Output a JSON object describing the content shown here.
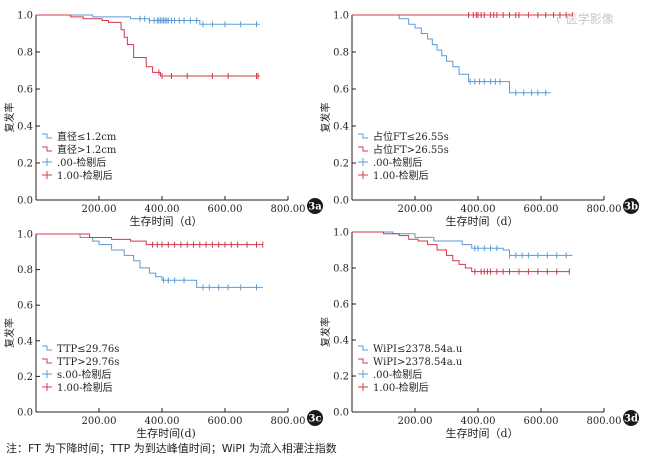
{
  "watermark": "ᠵ 医学影像",
  "note": "注：FT 为下降时间；TTP 为到达峰值时间；WiPI 为流入相灌注指数",
  "colors": {
    "blue": "#5b9bd5",
    "red": "#d2384a",
    "axis": "#231f20",
    "badge": "#1a1a1a"
  },
  "chart_data": [
    {
      "panel_label": "3a",
      "type": "line",
      "xlabel": "生存时间（d）",
      "ylabel": "复发率",
      "xlim": [
        0,
        800
      ],
      "ylim": [
        0.0,
        1.0
      ],
      "x_ticks": [
        "200.00",
        "400.00",
        "600.00",
        "800.00"
      ],
      "y_ticks": [
        "0.0",
        "0.2",
        "0.4",
        "0.6",
        "0.8",
        "1.0"
      ],
      "legend_position": "bottom-left",
      "legend": [
        "直径≤1.2cm",
        "直径>1.2cm",
        ".00-检剔后",
        "1.00-检剔后"
      ],
      "series": [
        {
          "name": "直径≤1.2cm",
          "color": "blue",
          "steps": [
            [
              0,
              1.0
            ],
            [
              180,
              0.99
            ],
            [
              300,
              0.98
            ],
            [
              360,
              0.97
            ],
            [
              520,
              0.95
            ],
            [
              710,
              0.95
            ]
          ],
          "censored": [
            330,
            345,
            360,
            375,
            385,
            390,
            395,
            400,
            405,
            410,
            415,
            420,
            430,
            440,
            455,
            470,
            490,
            510,
            530,
            560,
            600,
            650,
            700
          ]
        },
        {
          "name": "直径>1.2cm",
          "color": "red",
          "steps": [
            [
              0,
              1.0
            ],
            [
              110,
              0.99
            ],
            [
              150,
              0.98
            ],
            [
              210,
              0.97
            ],
            [
              230,
              0.96
            ],
            [
              270,
              0.92
            ],
            [
              280,
              0.88
            ],
            [
              290,
              0.84
            ],
            [
              310,
              0.77
            ],
            [
              350,
              0.72
            ],
            [
              370,
              0.69
            ],
            [
              395,
              0.67
            ],
            [
              710,
              0.67
            ]
          ],
          "censored": [
            390,
            400,
            430,
            480,
            560,
            610,
            700,
            705
          ]
        }
      ]
    },
    {
      "panel_label": "3b",
      "type": "line",
      "xlabel": "生存时间（d）",
      "ylabel": "复发率",
      "xlim": [
        0,
        800
      ],
      "ylim": [
        0.0,
        1.0
      ],
      "x_ticks": [
        "200.00",
        "400.00",
        "600.00",
        "800.00"
      ],
      "y_ticks": [
        "0.0",
        "0.2",
        "0.4",
        "0.6",
        "0.8",
        "1.0"
      ],
      "legend_position": "bottom-left",
      "legend": [
        "占位FT≤26.55s",
        "占位FT>26.55s",
        ".00-检剔后",
        "1.00-检剔后"
      ],
      "series": [
        {
          "name": "占位FT≤26.55s",
          "color": "blue",
          "steps": [
            [
              0,
              1.0
            ],
            [
              150,
              0.98
            ],
            [
              180,
              0.95
            ],
            [
              200,
              0.93
            ],
            [
              220,
              0.9
            ],
            [
              240,
              0.87
            ],
            [
              255,
              0.84
            ],
            [
              270,
              0.81
            ],
            [
              285,
              0.78
            ],
            [
              300,
              0.75
            ],
            [
              320,
              0.72
            ],
            [
              340,
              0.68
            ],
            [
              370,
              0.64
            ],
            [
              500,
              0.58
            ],
            [
              630,
              0.58
            ]
          ],
          "censored": [
            375,
            390,
            405,
            420,
            440,
            455,
            470,
            520,
            545,
            570,
            590,
            615
          ]
        },
        {
          "name": "占位FT>26.55s",
          "color": "red",
          "steps": [
            [
              0,
              1.0
            ],
            [
              700,
              1.0
            ]
          ],
          "censored": [
            370,
            385,
            395,
            400,
            410,
            420,
            440,
            450,
            460,
            480,
            500,
            520,
            530,
            560,
            590,
            615,
            640,
            660,
            680,
            700
          ]
        }
      ]
    },
    {
      "panel_label": "3c",
      "type": "line",
      "xlabel": "生存时间(d)",
      "ylabel": "复发率",
      "xlim": [
        0,
        800
      ],
      "ylim": [
        0.0,
        1.0
      ],
      "x_ticks": [
        "200.00",
        "400.00",
        "600.00",
        "800.00"
      ],
      "y_ticks": [
        "0.0",
        "0.2",
        "0.4",
        "0.6",
        "0.8",
        "1.0"
      ],
      "legend_position": "bottom-left",
      "legend": [
        "TTP≤29.76s",
        "TTP>29.76s",
        "s.00-检剔后",
        "1.00-检剔后"
      ],
      "series": [
        {
          "name": "TTP≤29.76s",
          "color": "blue",
          "steps": [
            [
              0,
              1.0
            ],
            [
              140,
              0.98
            ],
            [
              180,
              0.96
            ],
            [
              200,
              0.94
            ],
            [
              240,
              0.91
            ],
            [
              280,
              0.88
            ],
            [
              310,
              0.85
            ],
            [
              330,
              0.81
            ],
            [
              360,
              0.78
            ],
            [
              380,
              0.76
            ],
            [
              400,
              0.74
            ],
            [
              450,
              0.74
            ],
            [
              510,
              0.7
            ],
            [
              720,
              0.7
            ]
          ],
          "censored": [
            405,
            420,
            440,
            470,
            530,
            550,
            580,
            610,
            650,
            700
          ]
        },
        {
          "name": "TTP>29.76s",
          "color": "red",
          "steps": [
            [
              0,
              1.0
            ],
            [
              170,
              0.98
            ],
            [
              240,
              0.97
            ],
            [
              300,
              0.96
            ],
            [
              350,
              0.94
            ],
            [
              720,
              0.94
            ]
          ],
          "censored": [
            370,
            385,
            400,
            420,
            440,
            460,
            480,
            500,
            520,
            540,
            560,
            580,
            600,
            620,
            640,
            670,
            700,
            720
          ]
        }
      ]
    },
    {
      "panel_label": "3d",
      "type": "line",
      "xlabel": "生存时间（d）",
      "ylabel": "复发率",
      "xlim": [
        0,
        800
      ],
      "ylim": [
        0.0,
        1.0
      ],
      "x_ticks": [
        "200.00",
        "400.00",
        "600.00",
        "800.00"
      ],
      "y_ticks": [
        "0.0",
        "0.2",
        "0.4",
        "0.6",
        "0.8",
        "1.0"
      ],
      "legend_position": "bottom-left",
      "legend": [
        "WiPI≤2378.54a.u",
        "WiPI>2378.54a.u",
        ".00-检剔后",
        "1.00-检剔后"
      ],
      "series": [
        {
          "name": "WiPI≤2378.54a.u",
          "color": "blue",
          "steps": [
            [
              0,
              1.0
            ],
            [
              130,
              0.99
            ],
            [
              200,
              0.97
            ],
            [
              260,
              0.95
            ],
            [
              350,
              0.93
            ],
            [
              380,
              0.91
            ],
            [
              480,
              0.9
            ],
            [
              500,
              0.87
            ],
            [
              700,
              0.87
            ]
          ],
          "censored": [
            390,
            400,
            420,
            440,
            460,
            500,
            520,
            540,
            560,
            590,
            620,
            650,
            680
          ]
        },
        {
          "name": "WiPI>2378.54a.u",
          "color": "red",
          "steps": [
            [
              0,
              1.0
            ],
            [
              100,
              0.99
            ],
            [
              150,
              0.98
            ],
            [
              180,
              0.96
            ],
            [
              210,
              0.95
            ],
            [
              240,
              0.93
            ],
            [
              270,
              0.9
            ],
            [
              300,
              0.87
            ],
            [
              320,
              0.84
            ],
            [
              340,
              0.82
            ],
            [
              360,
              0.8
            ],
            [
              380,
              0.78
            ],
            [
              690,
              0.78
            ]
          ],
          "censored": [
            390,
            410,
            420,
            430,
            440,
            460,
            480,
            500,
            530,
            560,
            590,
            620,
            650,
            690
          ]
        }
      ]
    }
  ]
}
